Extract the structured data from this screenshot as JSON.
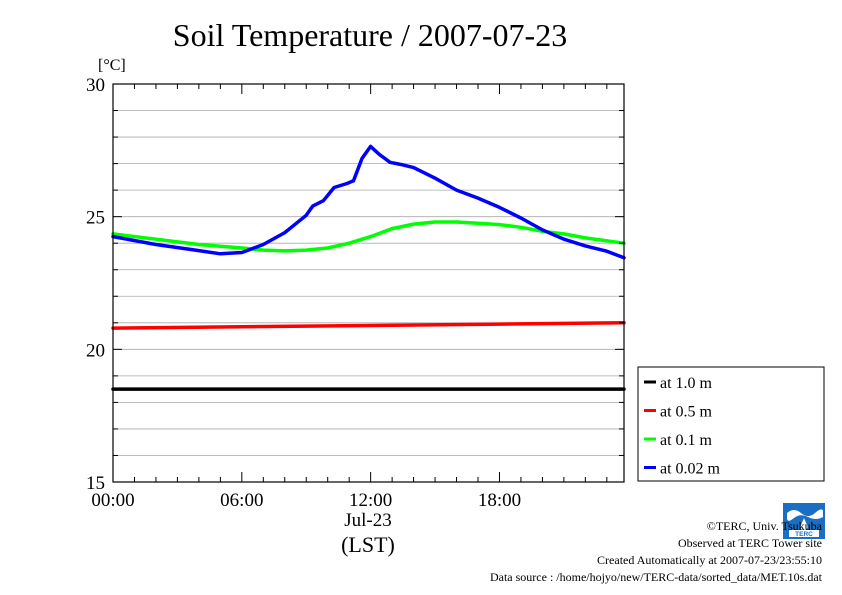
{
  "chart_data": {
    "type": "line",
    "title": "Soil Temperature / 2007-07-23",
    "unit_label": "[°C]",
    "xlabel_date": "Jul-23",
    "xlabel": "(LST)",
    "x_unit": "hours",
    "xlim": [
      0,
      23.8
    ],
    "ylim": [
      15,
      30
    ],
    "xticks": [
      0,
      6,
      12,
      18
    ],
    "xtick_labels": [
      "00:00",
      "06:00",
      "12:00",
      "18:00"
    ],
    "yticks": [
      15,
      20,
      25,
      30
    ],
    "ytick_labels": [
      "15",
      "20",
      "25",
      "30"
    ],
    "grid": true,
    "legend_position": "bottom-right-outside",
    "series": [
      {
        "name": "at 1.0 m",
        "color": "#000000",
        "x": [
          0,
          6,
          12,
          18,
          23.8
        ],
        "y": [
          18.5,
          18.5,
          18.5,
          18.5,
          18.5
        ]
      },
      {
        "name": "at 0.5 m",
        "color": "#ff0000",
        "x": [
          0,
          6,
          12,
          18,
          23.8
        ],
        "y": [
          20.8,
          20.85,
          20.9,
          20.95,
          21.0
        ]
      },
      {
        "name": "at 0.1 m",
        "color": "#00ff00",
        "x": [
          0,
          2,
          4,
          6,
          7,
          8,
          9,
          10,
          11,
          12,
          13,
          14,
          15,
          16,
          17,
          18,
          19,
          20,
          21,
          22,
          23.8
        ],
        "y": [
          24.35,
          24.15,
          23.95,
          23.82,
          23.74,
          23.71,
          23.74,
          23.82,
          24.0,
          24.25,
          24.55,
          24.72,
          24.8,
          24.8,
          24.75,
          24.7,
          24.6,
          24.45,
          24.35,
          24.2,
          24.0
        ]
      },
      {
        "name": "at 0.02 m",
        "color": "#0000ff",
        "x": [
          0,
          2,
          4,
          5,
          6,
          7,
          8,
          9,
          9.3,
          9.8,
          10.3,
          10.9,
          11.2,
          11.6,
          12.0,
          12.4,
          12.9,
          13.5,
          14.0,
          15,
          16,
          17,
          18,
          19,
          20,
          21,
          22,
          23,
          23.8
        ],
        "y": [
          24.25,
          23.95,
          23.72,
          23.6,
          23.65,
          23.95,
          24.4,
          25.05,
          25.4,
          25.6,
          26.1,
          26.25,
          26.35,
          27.2,
          27.65,
          27.35,
          27.05,
          26.95,
          26.85,
          26.45,
          26.0,
          25.7,
          25.35,
          24.95,
          24.5,
          24.15,
          23.9,
          23.7,
          23.45
        ]
      }
    ]
  },
  "credits": {
    "copyright": "©TERC, Univ. Tsukuba",
    "observed": "Observed at TERC Tower site",
    "created": "Created Automatically at 2007-07-23/23:55:10",
    "source": "Data source : /home/hojyo/new/TERC-data/sorted_data/MET.10s.dat",
    "logo_text": "TERC"
  }
}
